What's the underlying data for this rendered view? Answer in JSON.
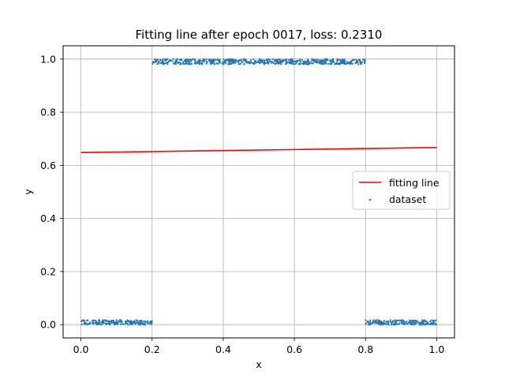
{
  "chart_data": {
    "type": "scatter",
    "title": "Fitting line after epoch 0017, loss: 0.2310",
    "xlabel": "x",
    "ylabel": "y",
    "xlim": [
      -0.05,
      1.05
    ],
    "ylim": [
      -0.05,
      1.05
    ],
    "xticks": [
      0.0,
      0.2,
      0.4,
      0.6,
      0.8,
      1.0
    ],
    "xtick_labels": [
      "0.0",
      "0.2",
      "0.4",
      "0.6",
      "0.8",
      "1.0"
    ],
    "yticks": [
      0.0,
      0.2,
      0.4,
      0.6,
      0.8,
      1.0
    ],
    "ytick_labels": [
      "0.0",
      "0.2",
      "0.4",
      "0.6",
      "0.8",
      "1.0"
    ],
    "grid": true,
    "legend_position": "center-right",
    "series": [
      {
        "name": "fitting line",
        "kind": "line",
        "color": "#ff0000",
        "x": [
          0.0,
          1.0
        ],
        "y": [
          0.648,
          0.667
        ]
      },
      {
        "name": "dataset",
        "kind": "scatter",
        "color": "#1f77b4",
        "segments": [
          {
            "x_range": [
              0.0,
              0.2
            ],
            "y_center": 0.0085,
            "y_spread": 0.009
          },
          {
            "x_range": [
              0.2,
              0.8
            ],
            "y_center": 0.99,
            "y_spread": 0.01
          },
          {
            "x_range": [
              0.8,
              1.0
            ],
            "y_center": 0.0085,
            "y_spread": 0.009
          }
        ]
      }
    ]
  }
}
